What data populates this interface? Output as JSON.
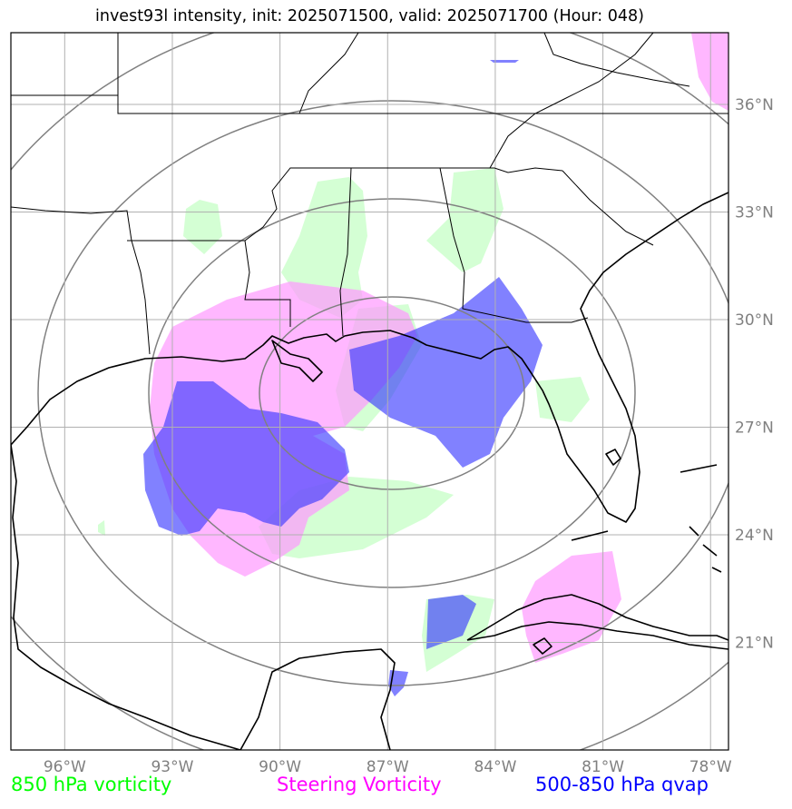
{
  "title": "invest93l intensity, init: 2025071500, valid: 2025071700 (Hour: 048)",
  "map": {
    "projection": "lat-lon",
    "lon_range": [
      -97.5,
      -77.5
    ],
    "lat_range": [
      18.0,
      38.0
    ],
    "lon_ticks": [
      {
        "value": -96,
        "label": "96°W"
      },
      {
        "value": -93,
        "label": "93°W"
      },
      {
        "value": -90,
        "label": "90°W"
      },
      {
        "value": -87,
        "label": "87°W"
      },
      {
        "value": -84,
        "label": "84°W"
      },
      {
        "value": -81,
        "label": "81°W"
      },
      {
        "value": -78,
        "label": "78°W"
      }
    ],
    "lat_ticks": [
      {
        "value": 21,
        "label": "21°N"
      },
      {
        "value": 24,
        "label": "24°N"
      },
      {
        "value": 27,
        "label": "27°N"
      },
      {
        "value": 30,
        "label": "30°N"
      },
      {
        "value": 33,
        "label": "33°N"
      },
      {
        "value": 36,
        "label": "36°N"
      }
    ],
    "grid": true,
    "range_ring_center": {
      "lon": -87.0,
      "lat": 27.9
    }
  },
  "legend": [
    {
      "label": "850 hPa vorticity",
      "color": "#00ff00"
    },
    {
      "label": "Steering Vorticity",
      "color": "#ff00ff"
    },
    {
      "label": "500-850 hPa qvap",
      "color": "#0000ff"
    }
  ],
  "fields": {
    "vorticity_850_color": "#ccffcc",
    "steering_vorticity_color": "#ff99ff",
    "qvap_color": "#3333ff"
  }
}
